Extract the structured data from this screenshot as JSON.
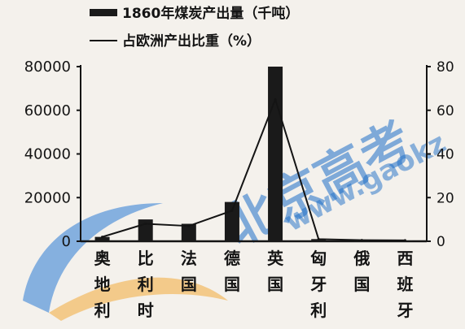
{
  "chart_data": {
    "type": "bar",
    "categories": [
      "奥地利",
      "比利时",
      "法国",
      "德国",
      "英国",
      "匈牙利",
      "俄国",
      "西班牙"
    ],
    "series": [
      {
        "name": "1860年煤炭产出量（千吨）",
        "type": "bar",
        "axis": "left",
        "values": [
          2000,
          10000,
          8000,
          18000,
          80000,
          1000,
          400,
          300
        ]
      },
      {
        "name": "占欧洲产出比重（%）",
        "type": "line",
        "axis": "right",
        "values": [
          2,
          8,
          7,
          14,
          65,
          1,
          0.5,
          0.4
        ]
      }
    ],
    "left_axis": {
      "ylim": [
        0,
        80000
      ],
      "ticks": [
        "0",
        "20000",
        "40000",
        "60000",
        "80000"
      ]
    },
    "right_axis": {
      "ylim": [
        0,
        80
      ],
      "ticks": [
        "0",
        "20",
        "40",
        "60",
        "80"
      ],
      "unit": "%"
    },
    "legend_position": "top",
    "bar_color": "#1a1a1a",
    "line_color": "#141414"
  },
  "watermark": {
    "main": "北京高考",
    "sub": "www.gaokz",
    "color": "#1e6fc8",
    "accent": "#f2a93b"
  }
}
